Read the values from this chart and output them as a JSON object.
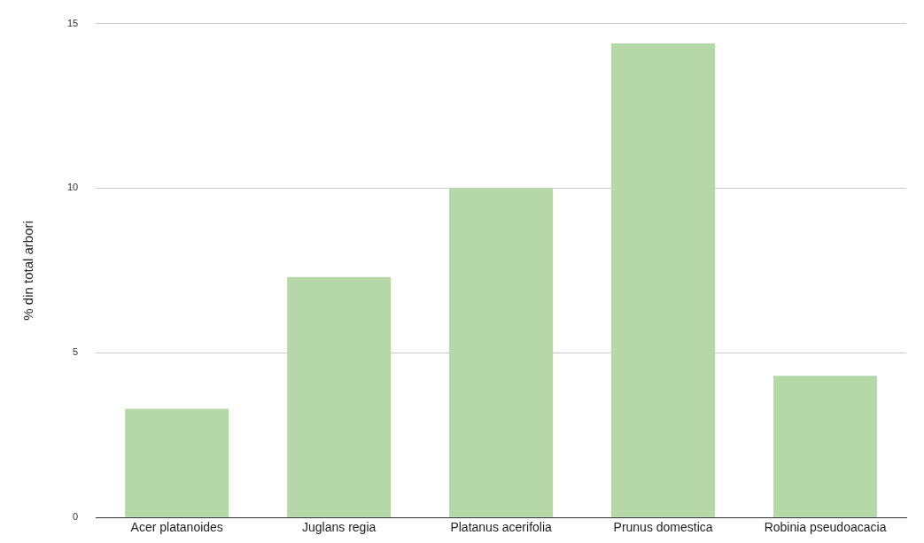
{
  "chart_data": {
    "type": "bar",
    "ylabel": "% din total arbori",
    "categories": [
      "Acer platanoides",
      "Juglans regia",
      "Platanus acerifolia",
      "Prunus domestica",
      "Robinia pseudoacacia"
    ],
    "values": [
      3.3,
      7.3,
      10.0,
      14.4,
      4.3
    ],
    "color": "#b6d7a8",
    "ylim": [
      0,
      15
    ],
    "yticks": [
      0,
      5,
      10,
      15
    ],
    "grid": "y"
  }
}
